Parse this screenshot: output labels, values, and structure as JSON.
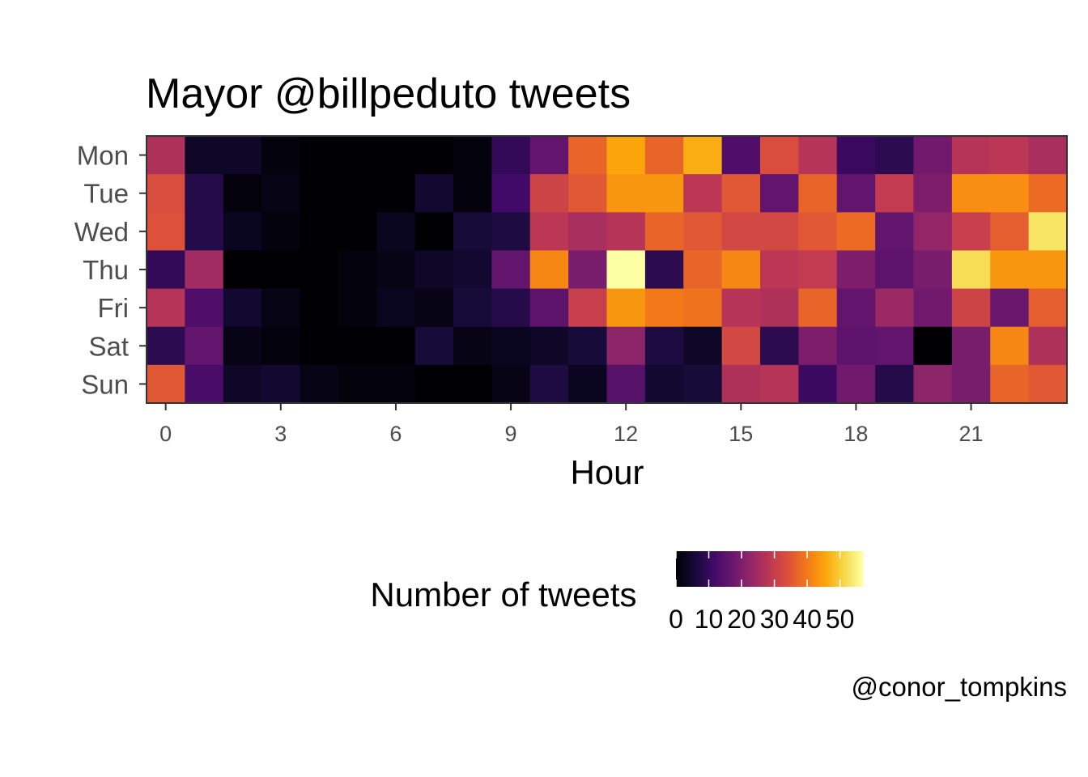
{
  "chart_data": {
    "type": "heatmap",
    "title": "Mayor @billpeduto tweets",
    "xlabel": "Hour",
    "ylabel": "",
    "x": [
      0,
      1,
      2,
      3,
      4,
      5,
      6,
      7,
      8,
      9,
      10,
      11,
      12,
      13,
      14,
      15,
      16,
      17,
      18,
      19,
      20,
      21,
      22,
      23
    ],
    "x_ticks": [
      0,
      3,
      6,
      9,
      12,
      15,
      18,
      21
    ],
    "y": [
      "Mon",
      "Tue",
      "Wed",
      "Thu",
      "Fri",
      "Sat",
      "Sun"
    ],
    "values": [
      [
        28,
        4,
        4,
        1,
        0,
        0,
        0,
        0,
        1,
        10,
        17,
        39,
        48,
        39,
        49,
        14,
        35,
        29,
        11,
        9,
        19,
        29,
        30,
        27
      ],
      [
        35,
        8,
        1,
        2,
        0,
        0,
        0,
        5,
        1,
        12,
        33,
        37,
        46,
        46,
        30,
        37,
        17,
        39,
        17,
        31,
        21,
        45,
        45,
        40
      ],
      [
        36,
        8,
        3,
        1,
        0,
        0,
        3,
        0,
        6,
        7,
        30,
        27,
        29,
        39,
        37,
        34,
        34,
        37,
        40,
        17,
        24,
        32,
        38,
        56
      ],
      [
        10,
        26,
        0,
        0,
        0,
        1,
        2,
        4,
        5,
        17,
        44,
        20,
        60,
        9,
        39,
        44,
        30,
        31,
        21,
        16,
        20,
        55,
        46,
        46
      ],
      [
        29,
        14,
        5,
        2,
        0,
        1,
        3,
        2,
        6,
        8,
        16,
        32,
        46,
        42,
        41,
        29,
        28,
        39,
        17,
        25,
        19,
        33,
        18,
        38
      ],
      [
        9,
        17,
        2,
        1,
        0,
        0,
        0,
        6,
        2,
        3,
        4,
        6,
        23,
        7,
        4,
        34,
        9,
        21,
        16,
        17,
        0,
        20,
        44,
        28
      ],
      [
        37,
        13,
        4,
        5,
        2,
        1,
        1,
        0,
        0,
        2,
        7,
        3,
        15,
        5,
        6,
        28,
        29,
        11,
        19,
        8,
        23,
        20,
        39,
        37
      ]
    ],
    "zlim": [
      0,
      60
    ],
    "legend": {
      "title": "Number of tweets",
      "labels": [
        "0",
        "10",
        "20",
        "30",
        "40",
        "50"
      ],
      "position": "bottom",
      "colormap": "inferno"
    },
    "caption": "@conor_tompkins",
    "grid": false
  }
}
